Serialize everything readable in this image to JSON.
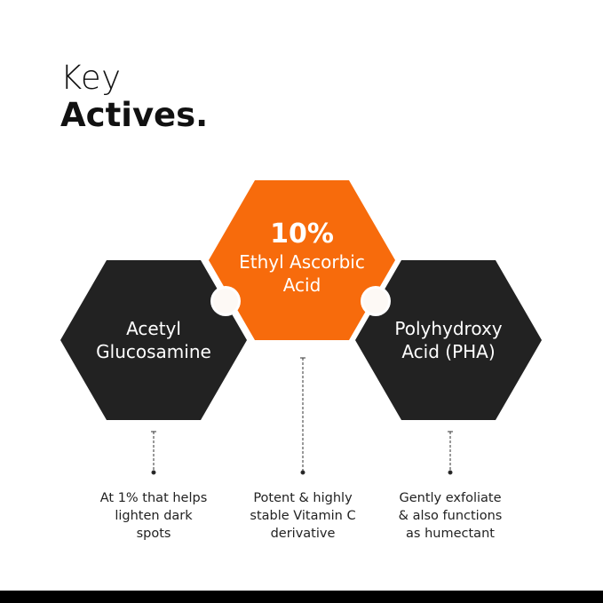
{
  "title": {
    "line1": "Key",
    "line2": "Actives."
  },
  "colors": {
    "accent": "#f76b0c",
    "dark": "#222222",
    "connector": "#fdfaf6"
  },
  "actives": [
    {
      "percent": "",
      "name_line1": "Acetyl",
      "name_line2": "Glucosamine",
      "description": [
        "At 1% that helps",
        "lighten dark",
        "spots"
      ]
    },
    {
      "percent": "10%",
      "name_line1": "Ethyl Ascorbic",
      "name_line2": "Acid",
      "description": [
        "Potent & highly",
        "stable Vitamin C",
        "derivative"
      ]
    },
    {
      "percent": "",
      "name_line1": "Polyhydroxy",
      "name_line2": "Acid (PHA)",
      "description": [
        "Gently exfoliate",
        "& also functions",
        "as humectant"
      ]
    }
  ]
}
